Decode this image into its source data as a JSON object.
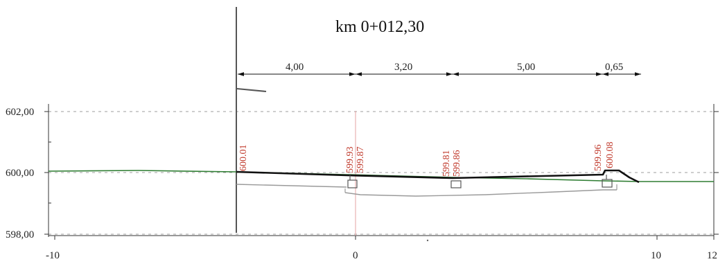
{
  "title": "km 0+012,30",
  "dimensions": [
    "4,00",
    "3,20",
    "5,00",
    "0,65"
  ],
  "elevation_labels": [
    "602,00",
    "600,00",
    "598,00"
  ],
  "x_tick_labels": [
    "-10",
    "0",
    "10",
    "12"
  ],
  "point_labels": [
    "600.01",
    "599.93",
    "599.87",
    "599.81",
    "599.86",
    "599.96",
    "600.08"
  ],
  "colors": {
    "terrain": "#2e7d32",
    "design": "#111111",
    "subgrade": "#9a9a9a",
    "labels": "#c0392b",
    "grid": "#9e9e9e"
  }
}
